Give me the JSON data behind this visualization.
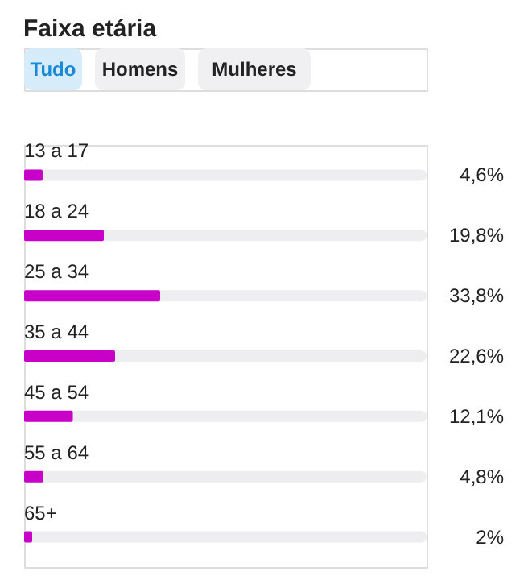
{
  "chart_data": {
    "type": "bar",
    "orientation": "horizontal",
    "title": "Faixa etária",
    "annotations": [
      "Tudo",
      "Homens",
      "Mulheres"
    ],
    "categories": [
      "13 a 17",
      "18 a 24",
      "25 a 34",
      "35 a 44",
      "45 a 54",
      "55 a 64",
      "65+"
    ],
    "values": [
      4.6,
      19.8,
      33.8,
      22.6,
      12.1,
      4.8,
      2
    ],
    "value_labels": [
      "4,6%",
      "19,8%",
      "33,8%",
      "22,6%",
      "12,1%",
      "4,8%",
      "2%"
    ],
    "color": "#c800c8",
    "xlim": [
      0,
      100
    ],
    "tick_labels": false
  }
}
